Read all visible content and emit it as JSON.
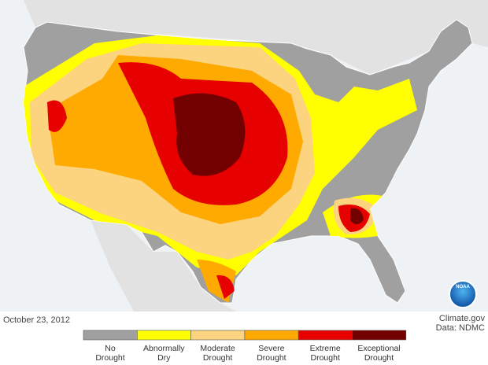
{
  "map": {
    "date": "October 23, 2012",
    "source": "Climate.gov",
    "credit": "Data: NDMC",
    "logo": "NOAA",
    "legend": [
      {
        "label": [
          "No",
          "Drought"
        ],
        "color": "#a0a0a0"
      },
      {
        "label": [
          "Abnormally",
          "Dry"
        ],
        "color": "#ffff00"
      },
      {
        "label": [
          "Moderate",
          "Drought"
        ],
        "color": "#fcd37f"
      },
      {
        "label": [
          "Severe",
          "Drought"
        ],
        "color": "#ffaa00"
      },
      {
        "label": [
          "Extreme",
          "Drought"
        ],
        "color": "#e60000"
      },
      {
        "label": [
          "Exceptional",
          "Drought"
        ],
        "color": "#730000"
      }
    ]
  }
}
